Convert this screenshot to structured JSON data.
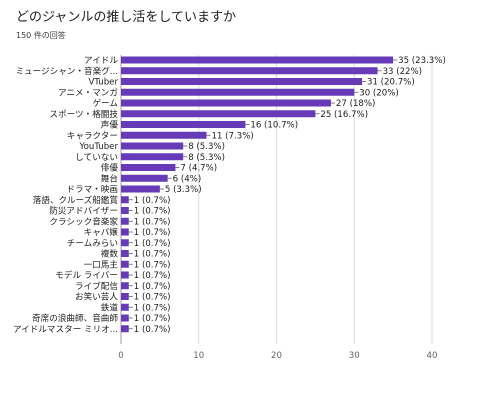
{
  "title": "どのジャンルの推し活をしていますか",
  "subtitle": "150 件の回答",
  "chart_data": {
    "type": "bar",
    "orientation": "horizontal",
    "categories": [
      "アイドル",
      "ミュージシャン・音楽グ...",
      "VTuber",
      "アニメ・マンガ",
      "ゲーム",
      "スポーツ・格闘技",
      "声優",
      "キャラクター",
      "YouTuber",
      "していない",
      "俳優",
      "舞台",
      "ドラマ・映画",
      "落語、クルーズ船鑑賞",
      "防災アドバイザー",
      "クラシック音楽家",
      "キャバ嬢",
      "チームみらい",
      "複数",
      "一口馬主",
      "モデル ライバー",
      "ライブ配信",
      "お笑い芸人",
      "鉄道",
      "奇席の浪曲師、音曲師",
      "アイドルマスター ミリオ..."
    ],
    "values": [
      35,
      33,
      31,
      30,
      27,
      25,
      16,
      11,
      8,
      8,
      7,
      6,
      5,
      1,
      1,
      1,
      1,
      1,
      1,
      1,
      1,
      1,
      1,
      1,
      1,
      1
    ],
    "value_labels": [
      "35 (23.3%)",
      "33 (22%)",
      "31 (20.7%)",
      "30 (20%)",
      "27 (18%)",
      "25 (16.7%)",
      "16 (10.7%)",
      "11 (7.3%)",
      "8 (5.3%)",
      "8 (5.3%)",
      "7 (4.7%)",
      "6 (4%)",
      "5 (3.3%)",
      "1 (0.7%)",
      "1 (0.7%)",
      "1 (0.7%)",
      "1 (0.7%)",
      "1 (0.7%)",
      "1 (0.7%)",
      "1 (0.7%)",
      "1 (0.7%)",
      "1 (0.7%)",
      "1 (0.7%)",
      "1 (0.7%)",
      "1 (0.7%)",
      "1 (0.7%)"
    ],
    "xticks": [
      0,
      10,
      20,
      30,
      40
    ],
    "xlim": [
      0,
      40
    ],
    "grid": true,
    "bar_color": "#673ab7",
    "grid_color": "#dadce0"
  }
}
